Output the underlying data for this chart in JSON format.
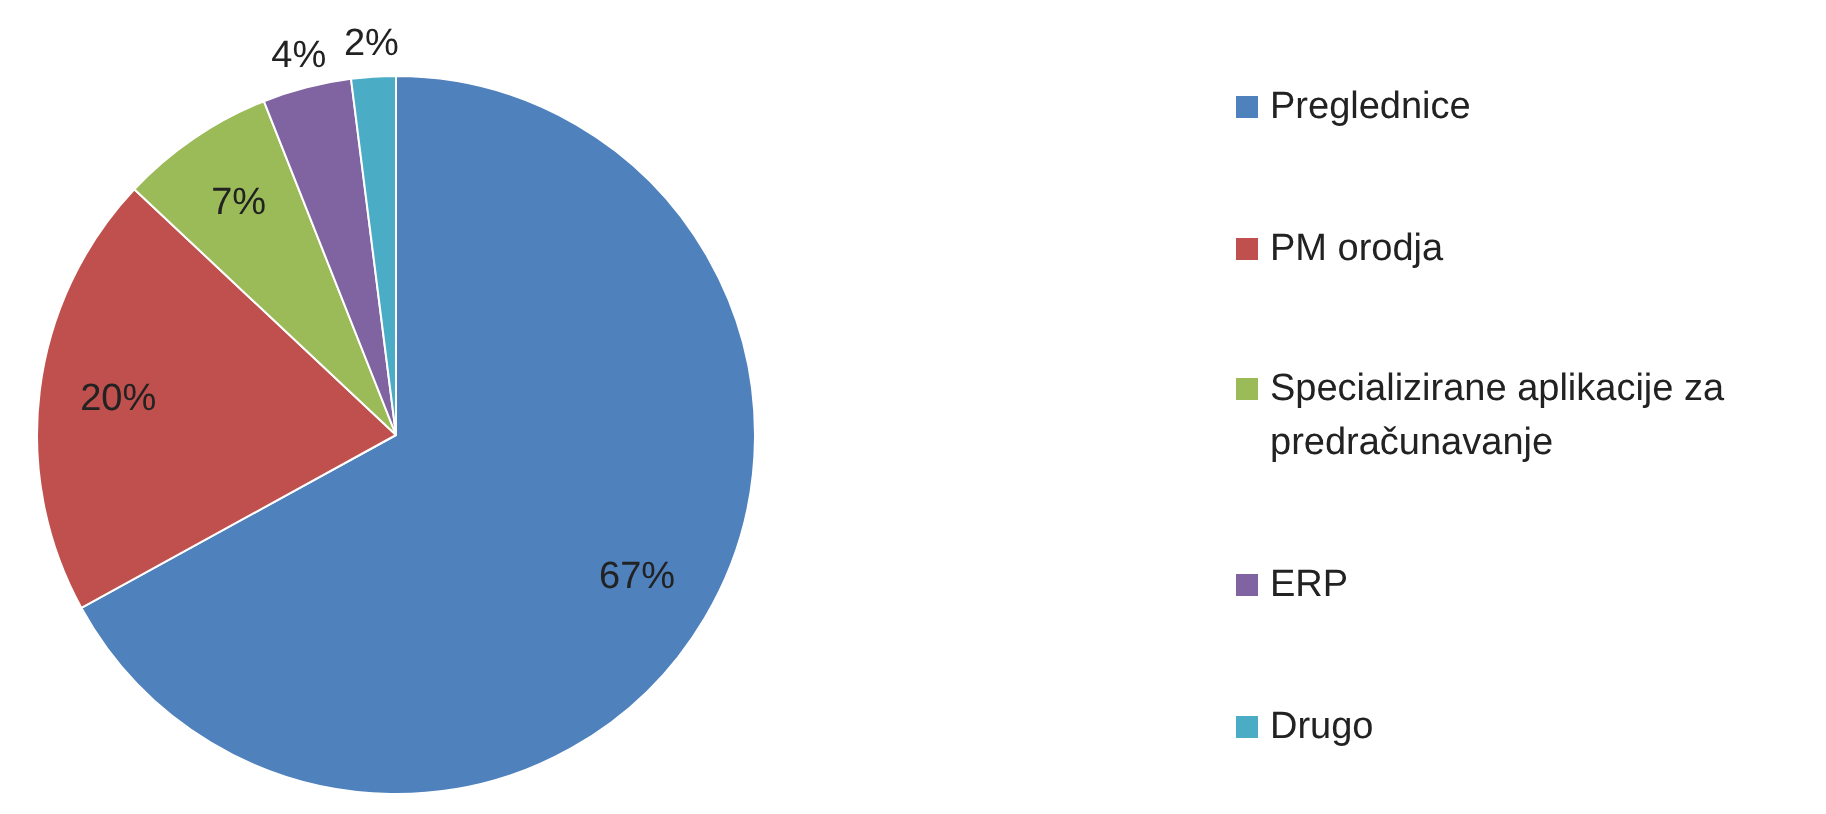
{
  "chart_data": {
    "type": "pie",
    "categories": [
      "Preglednice",
      "PM orodja",
      "Specializirane aplikacije za predračunavanje",
      "ERP",
      "Drugo"
    ],
    "values": [
      67,
      20,
      7,
      4,
      2
    ],
    "colors": [
      "#4f81bd",
      "#c0504d",
      "#9bbb59",
      "#8064a2",
      "#4bacc6"
    ],
    "value_labels": [
      "67%",
      "20%",
      "7%",
      "4%",
      "2%"
    ],
    "legend": "right"
  }
}
